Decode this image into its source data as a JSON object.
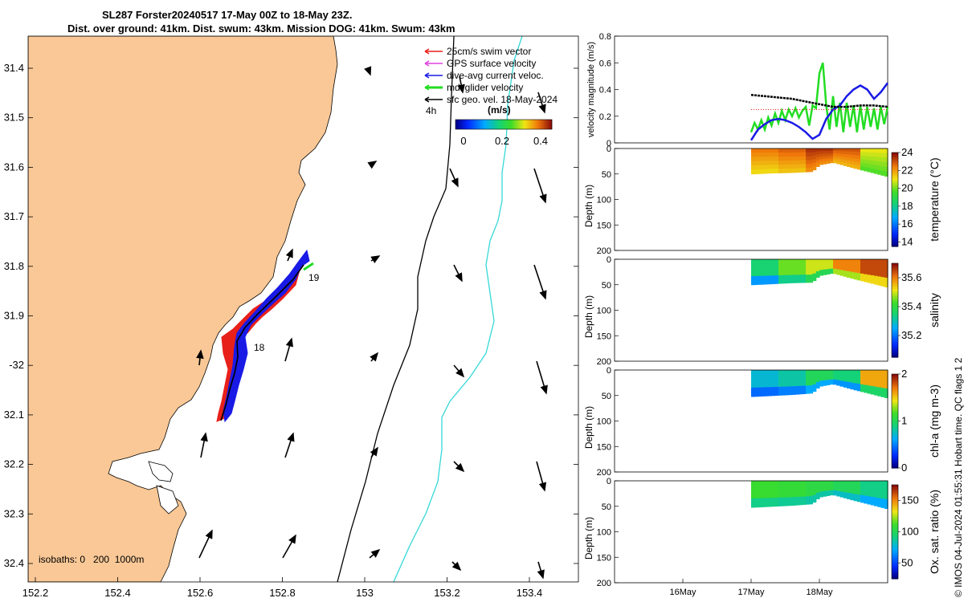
{
  "title": {
    "line1": "SL287 Forster20240517 17-May 00Z to 18-May 23Z.",
    "line2": "Dist. over ground: 41km. Dist. swum: 43km. Mission DOG: 41km. Swum: 43km"
  },
  "map": {
    "legend": [
      "25cm/s swim vector",
      "GPS surface velocity",
      "dive-avg current veloc.",
      "mdl glider velocity",
      "sfc geo. vel. 18-May-2024"
    ],
    "legend_colors": [
      "#e8201a",
      "#e040e0",
      "#1a1ae6",
      "#22dd22",
      "#000000"
    ],
    "timescale": "4h",
    "colorbar_unit": "(m/s)",
    "colorbar_ticks": [
      "0",
      "0.2",
      "0.4"
    ],
    "isobaths": "isobaths: 0   200  1000m",
    "day_labels": [
      "19",
      "18"
    ],
    "lat_ticks": [
      "31.4",
      "31.5",
      "31.6",
      "31.7",
      "31.8",
      "31.9",
      "-32",
      "32.1",
      "32.2",
      "32.3",
      "32.4"
    ],
    "lon_ticks": [
      "152.2",
      "152.4",
      "152.6",
      "152.8",
      "153",
      "153.2",
      "153.4"
    ],
    "colors": {
      "land": "#f9c896",
      "swim": "#e8201a",
      "current": "#1a1ae6",
      "glider": "#22dd22",
      "isobath_200": "#000000",
      "isobath_1000": "#35d8d8"
    }
  },
  "chart_data": [
    {
      "type": "line",
      "title": "",
      "ylabel": "velocity magnitude (m/s)",
      "ylim": [
        0,
        0.8
      ],
      "yticks": [
        "0",
        "0.2",
        "0.4",
        "0.6",
        "0.8"
      ],
      "xlim_days": [
        15,
        19
      ],
      "series": [
        {
          "color": "#22dd22",
          "x": [
            17.0,
            17.05,
            17.1,
            17.15,
            17.2,
            17.25,
            17.3,
            17.35,
            17.4,
            17.45,
            17.5,
            17.55,
            17.6,
            17.65,
            17.7,
            17.75,
            17.8,
            17.85,
            17.9,
            17.95,
            18.0,
            18.05,
            18.1,
            18.15,
            18.2,
            18.25,
            18.3,
            18.35,
            18.4,
            18.45,
            18.5,
            18.55,
            18.6,
            18.65,
            18.7,
            18.75,
            18.8,
            18.85,
            18.9,
            18.95,
            19.0
          ],
          "values": [
            0.08,
            0.15,
            0.1,
            0.17,
            0.1,
            0.19,
            0.13,
            0.22,
            0.15,
            0.24,
            0.17,
            0.25,
            0.2,
            0.26,
            0.19,
            0.24,
            0.27,
            0.13,
            0.28,
            0.26,
            0.52,
            0.6,
            0.28,
            0.1,
            0.35,
            0.12,
            0.3,
            0.08,
            0.3,
            0.12,
            0.28,
            0.08,
            0.28,
            0.1,
            0.27,
            0.12,
            0.26,
            0.1,
            0.27,
            0.14,
            0.27
          ]
        },
        {
          "color": "#1a1ae6",
          "x": [
            17.0,
            17.1,
            17.2,
            17.3,
            17.4,
            17.5,
            17.6,
            17.7,
            17.8,
            17.9,
            18.0,
            18.1,
            18.2,
            18.3,
            18.4,
            18.5,
            18.6,
            18.7,
            18.8,
            18.9,
            19.0
          ],
          "values": [
            0.02,
            0.1,
            0.14,
            0.17,
            0.18,
            0.17,
            0.15,
            0.12,
            0.08,
            0.03,
            0.06,
            0.18,
            0.25,
            0.28,
            0.35,
            0.4,
            0.43,
            0.4,
            0.33,
            0.38,
            0.45
          ]
        },
        {
          "color": "#000000",
          "x": [
            17.0,
            17.2,
            17.4,
            17.6,
            17.8,
            18.0,
            18.2,
            18.4,
            18.6,
            18.8,
            19.0
          ],
          "values": [
            0.36,
            0.35,
            0.34,
            0.33,
            0.31,
            0.29,
            0.27,
            0.27,
            0.28,
            0.28,
            0.27
          ]
        }
      ]
    },
    {
      "type": "heatmap",
      "title": "",
      "ylabel": "Depth (m)",
      "colorbar_label": "temperature (°C)",
      "ylim": [
        200,
        0
      ],
      "yticks": [
        "0",
        "50",
        "100",
        "150",
        "200"
      ],
      "colorbar_range": [
        13.5,
        24
      ],
      "colorbar_ticks": [
        "14",
        "16",
        "18",
        "20",
        "22",
        "24"
      ],
      "x_days": [
        17.0,
        19.0
      ],
      "profile_x": [
        17.0,
        17.3,
        17.6,
        17.9,
        18.0,
        18.2,
        18.5,
        18.8,
        19.0
      ],
      "profile_bottom_m": [
        50,
        48,
        47,
        45,
        32,
        27,
        38,
        48,
        55
      ],
      "typical_values": [
        22.5,
        22.8,
        23.5,
        23.0,
        21.0
      ]
    },
    {
      "type": "heatmap",
      "title": "",
      "ylabel": "Depth (m)",
      "colorbar_label": "salinity",
      "ylim": [
        200,
        0
      ],
      "yticks": [
        "0",
        "50",
        "100",
        "150",
        "200"
      ],
      "colorbar_range": [
        35.05,
        35.7
      ],
      "colorbar_ticks": [
        "35.2",
        "35.4",
        "35.6"
      ],
      "x_days": [
        17.0,
        19.0
      ],
      "profile_x": [
        17.0,
        17.3,
        17.6,
        17.9,
        18.0,
        18.2,
        18.5,
        18.8,
        19.0
      ],
      "profile_bottom_m": [
        50,
        48,
        46,
        45,
        32,
        27,
        38,
        48,
        55
      ],
      "typical_values": [
        35.35,
        35.45,
        35.5,
        35.6,
        35.65
      ]
    },
    {
      "type": "heatmap",
      "title": "",
      "ylabel": "Depth (m)",
      "colorbar_label": "chl-a (mg m-3)",
      "ylim": [
        200,
        0
      ],
      "yticks": [
        "0",
        "50",
        "100",
        "150",
        "200"
      ],
      "colorbar_range": [
        0,
        2
      ],
      "colorbar_ticks": [
        "0",
        "1",
        "2"
      ],
      "x_days": [
        17.0,
        19.0
      ],
      "profile_x": [
        17.0,
        17.3,
        17.6,
        17.9,
        18.0,
        18.2,
        18.5,
        18.8,
        19.0
      ],
      "profile_bottom_m": [
        52,
        50,
        48,
        45,
        32,
        27,
        38,
        48,
        55
      ],
      "typical_values": [
        0.7,
        0.8,
        1.0,
        0.9,
        1.6
      ]
    },
    {
      "type": "heatmap",
      "title": "",
      "ylabel": "Depth (m)",
      "colorbar_label": "Ox. sat. ratio (%)",
      "ylim": [
        200,
        0
      ],
      "yticks": [
        "0",
        "50",
        "100",
        "150",
        "200"
      ],
      "colorbar_range": [
        25,
        175
      ],
      "colorbar_ticks": [
        "50",
        "100",
        "150"
      ],
      "x_days": [
        17.0,
        19.0
      ],
      "profile_x": [
        17.0,
        17.3,
        17.6,
        17.9,
        18.0,
        18.2,
        18.5,
        18.8,
        19.0
      ],
      "profile_bottom_m": [
        52,
        50,
        48,
        45,
        32,
        27,
        38,
        48,
        55
      ],
      "typical_values": [
        110,
        108,
        105,
        100,
        90
      ]
    }
  ],
  "time_axis": {
    "ticks": [
      "16May",
      "17May",
      "18May"
    ],
    "tick_days": [
      16,
      17,
      18
    ]
  },
  "credit": "© IMOS 04-Jul-2024 01:55:31 Hobart time. QC flags 1  2"
}
